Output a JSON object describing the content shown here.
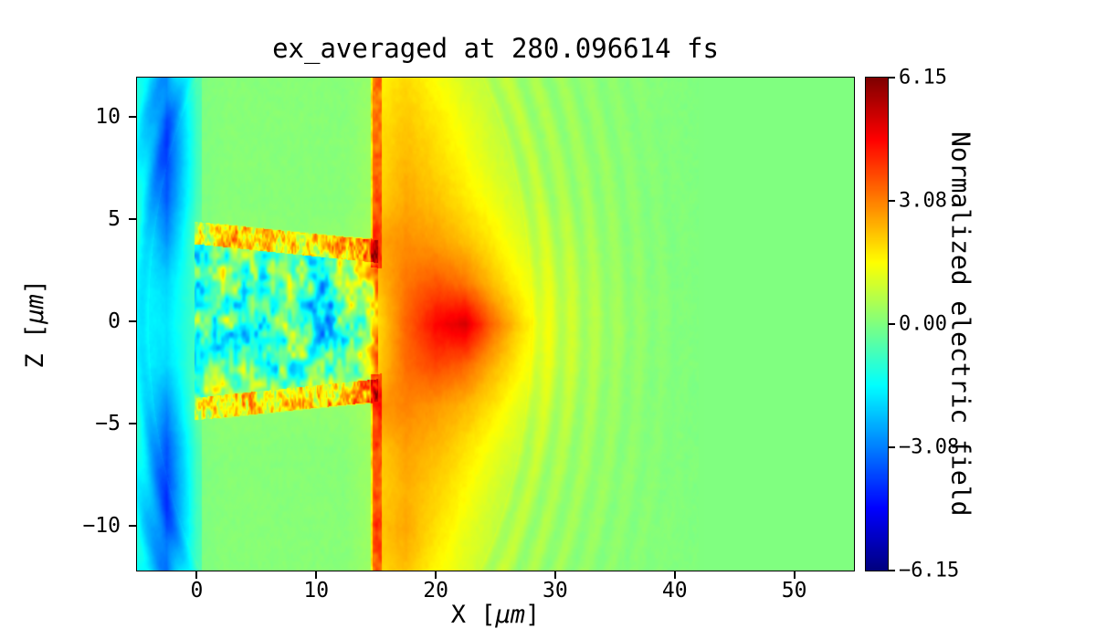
{
  "figure": {
    "background": "#ffffff"
  },
  "labels": {
    "x": {
      "pre": "X [",
      "mu": "μm",
      "post": "]"
    },
    "y": {
      "pre": "Z [",
      "mu": "μm",
      "post": "]"
    }
  },
  "axes": {
    "x_ticks": [
      0,
      10,
      20,
      30,
      40,
      50
    ],
    "y_ticks": [
      10,
      5,
      0,
      -5,
      -10
    ]
  },
  "colorbar": {
    "label": "Normalized electric field",
    "ticks": [
      6.15,
      3.08,
      0.0,
      -3.08,
      -6.15
    ],
    "vmin": -6.15,
    "vmax": 6.15
  },
  "chart_data": {
    "type": "heatmap",
    "title": "ex_averaged at 280.096614 fs",
    "xlabel": "X [μm]",
    "ylabel": "Z [μm]",
    "colorbar_label": "Normalized electric field",
    "colormap": "jet",
    "vmin": -6.15,
    "vmax": 6.15,
    "x_range": [
      -5,
      55
    ],
    "z_range": [
      -12.2,
      11.9
    ],
    "grid": {
      "comment": "coarse field values, rows top(z=11.9) to bottom(z=-12.2), cols x=-5..55 step 2.5",
      "ncols": 25,
      "nrows": 13,
      "values": [
        [
          -1.2,
          -3.0,
          -0.6,
          0.1,
          0.1,
          0.1,
          0.1,
          0.1,
          1.6,
          2.0,
          1.5,
          1.0,
          0.7,
          0.4,
          0.3,
          0.2,
          0.15,
          0.1,
          0.05,
          0,
          0,
          0,
          0,
          0,
          0
        ],
        [
          -1.4,
          -3.6,
          -0.8,
          0.1,
          0.1,
          0.1,
          0.1,
          0.1,
          1.8,
          2.2,
          1.8,
          1.3,
          0.8,
          0.5,
          0.35,
          0.25,
          0.15,
          0.1,
          0.05,
          0,
          0,
          0,
          0,
          0,
          0
        ],
        [
          -1.4,
          -3.8,
          -0.8,
          0.1,
          0.1,
          0.1,
          0.1,
          0.1,
          1.9,
          2.4,
          2.0,
          1.5,
          1.0,
          0.6,
          0.4,
          0.3,
          0.2,
          0.1,
          0.05,
          0,
          0,
          0,
          0,
          0,
          0
        ],
        [
          -1.3,
          -3.5,
          -0.7,
          0.1,
          0.1,
          0.1,
          0.1,
          0.1,
          2.0,
          2.6,
          2.3,
          1.8,
          1.3,
          0.8,
          0.5,
          0.35,
          0.2,
          0.1,
          0.05,
          0,
          0,
          0,
          0,
          0,
          0
        ],
        [
          -1.2,
          -2.8,
          -0.4,
          0.8,
          0.6,
          0.5,
          0.6,
          0.8,
          2.6,
          2.9,
          2.7,
          2.3,
          1.7,
          1.1,
          0.7,
          0.45,
          0.25,
          0.12,
          0.05,
          0,
          0,
          0,
          0,
          0,
          0
        ],
        [
          -1.5,
          -2.0,
          -0.6,
          -0.3,
          -1.2,
          0.5,
          -1.8,
          0.3,
          2.2,
          3.2,
          3.6,
          3.2,
          2.2,
          1.4,
          0.9,
          0.55,
          0.3,
          0.15,
          0.05,
          0,
          0,
          0,
          0,
          0,
          0
        ],
        [
          -1.5,
          -1.8,
          -0.7,
          -0.4,
          -2.2,
          0.8,
          -2.8,
          -0.6,
          1.8,
          3.4,
          4.6,
          5.1,
          3.2,
          1.8,
          1.0,
          0.6,
          0.35,
          0.18,
          0.06,
          0,
          0,
          0,
          0,
          0,
          0
        ],
        [
          -1.5,
          -2.0,
          -0.6,
          -0.2,
          -1.0,
          -1.6,
          0.6,
          -1.2,
          2.0,
          3.3,
          3.8,
          3.4,
          2.4,
          1.5,
          0.9,
          0.55,
          0.3,
          0.15,
          0.05,
          0,
          0,
          0,
          0,
          0,
          0
        ],
        [
          -1.3,
          -2.9,
          -0.4,
          0.9,
          0.7,
          0.6,
          0.7,
          0.9,
          2.8,
          3.0,
          2.8,
          2.4,
          1.8,
          1.1,
          0.7,
          0.45,
          0.25,
          0.12,
          0.05,
          0,
          0,
          0,
          0,
          0,
          0
        ],
        [
          -1.3,
          -3.6,
          -0.7,
          0.1,
          0.1,
          0.1,
          0.1,
          0.1,
          2.1,
          2.7,
          2.4,
          1.9,
          1.3,
          0.8,
          0.5,
          0.35,
          0.2,
          0.1,
          0.05,
          0,
          0,
          0,
          0,
          0,
          0
        ],
        [
          -1.4,
          -3.8,
          -0.8,
          0.1,
          0.1,
          0.1,
          0.1,
          0.1,
          2.0,
          2.5,
          2.1,
          1.6,
          1.0,
          0.6,
          0.4,
          0.3,
          0.2,
          0.1,
          0.05,
          0,
          0,
          0,
          0,
          0,
          0
        ],
        [
          -1.4,
          -3.7,
          -0.8,
          0.1,
          0.1,
          0.1,
          0.1,
          0.1,
          2.2,
          2.6,
          1.9,
          1.3,
          0.8,
          0.5,
          0.35,
          0.25,
          0.15,
          0.1,
          0.05,
          0,
          0,
          0,
          0,
          0,
          0
        ],
        [
          -1.2,
          -3.2,
          -0.7,
          0.1,
          0.1,
          0.1,
          0.1,
          0.1,
          2.0,
          2.3,
          1.6,
          1.1,
          0.7,
          0.4,
          0.3,
          0.2,
          0.12,
          0.08,
          0.04,
          0,
          0,
          0,
          0,
          0,
          0
        ]
      ]
    },
    "turbulence": {
      "comment": "speckled wakefield channel behind the laser front",
      "x_min": -0.2,
      "x_max": 15.2,
      "half_width_at_x0": 4.3,
      "half_width_slope": -0.06,
      "interior_amp": 2.6,
      "interior_scale": 0.8,
      "edge_mean": 1.3,
      "edge_amp": 2.2,
      "edge_thickness": 0.55,
      "front_x": 15.0,
      "front_amp": 2.2,
      "front_thickness": 0.45,
      "plateau_flatten": {
        "x_min": 0.4,
        "x_max": 14.7,
        "margin": 0.6,
        "base": 0.1,
        "keep": 0.15
      }
    },
    "ripples": {
      "comment": "faint expanding arcs ahead of the front",
      "cx": 12,
      "cz": 0,
      "z_scale": 0.9,
      "r_min": 16,
      "r_max": 30,
      "wavelength": 1.9,
      "amp": 0.32
    },
    "grain": {
      "amp": 0.1,
      "scale": 0.35,
      "x_max": 42
    }
  }
}
